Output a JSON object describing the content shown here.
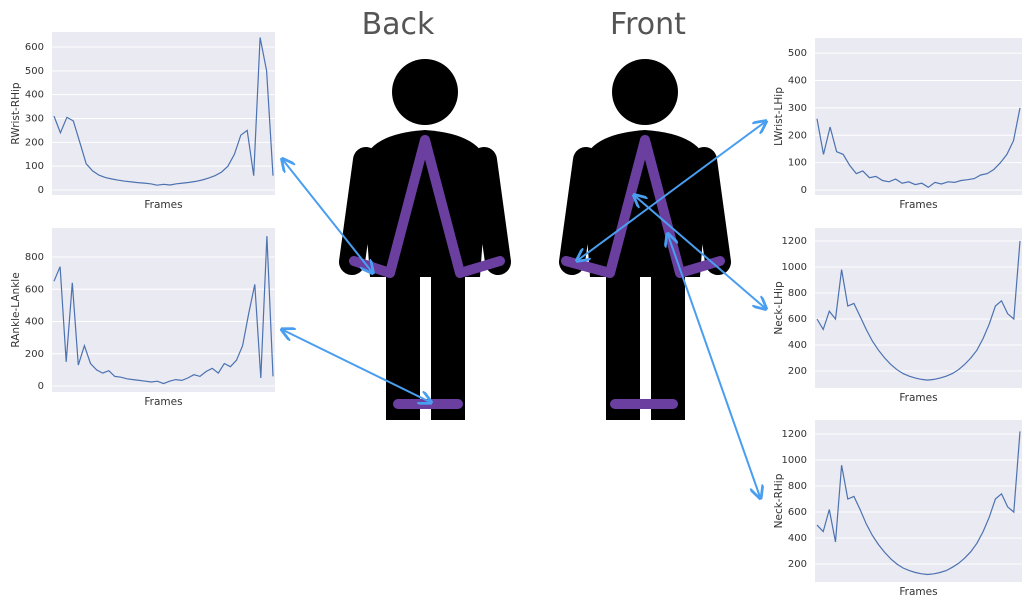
{
  "labels": {
    "back": "Back",
    "front": "Front"
  },
  "chart_data": [
    {
      "type": "line",
      "xlabel": "Frames",
      "ylabel": "RWrist-RHip",
      "color": "#4c72b0",
      "grid": true,
      "ylim": [
        -21,
        663
      ],
      "yticks": [
        0,
        100,
        200,
        300,
        400,
        500,
        600
      ],
      "values": [
        310,
        240,
        305,
        290,
        200,
        110,
        80,
        62,
        52,
        46,
        41,
        37,
        34,
        31,
        29,
        26,
        20,
        24,
        21,
        26,
        29,
        32,
        36,
        42,
        50,
        60,
        75,
        100,
        150,
        230,
        250,
        60,
        640,
        500,
        60
      ]
    },
    {
      "type": "line",
      "xlabel": "Frames",
      "ylabel": "RAnkle-LAnkle",
      "color": "#4c72b0",
      "grid": true,
      "ylim": [
        -37,
        980
      ],
      "yticks": [
        0,
        200,
        400,
        600,
        800
      ],
      "values": [
        650,
        740,
        150,
        640,
        130,
        250,
        140,
        100,
        80,
        95,
        60,
        55,
        45,
        40,
        35,
        30,
        25,
        30,
        15,
        30,
        40,
        35,
        50,
        70,
        60,
        90,
        110,
        80,
        140,
        120,
        160,
        250,
        450,
        630,
        50,
        930,
        60
      ]
    },
    {
      "type": "line",
      "xlabel": "Frames",
      "ylabel": "LWrist-LHip",
      "color": "#4c72b0",
      "grid": true,
      "ylim": [
        -18,
        555
      ],
      "yticks": [
        0,
        100,
        200,
        300,
        400,
        500
      ],
      "values": [
        260,
        130,
        230,
        140,
        130,
        90,
        60,
        70,
        45,
        50,
        35,
        30,
        40,
        25,
        30,
        20,
        25,
        10,
        28,
        22,
        30,
        28,
        35,
        38,
        42,
        55,
        60,
        75,
        100,
        130,
        180,
        300
      ]
    },
    {
      "type": "line",
      "xlabel": "Frames",
      "ylabel": "Neck-LHip",
      "color": "#4c72b0",
      "grid": true,
      "ylim": [
        69,
        1300
      ],
      "yticks": [
        200,
        400,
        600,
        800,
        1000,
        1200
      ],
      "values": [
        600,
        520,
        660,
        600,
        980,
        700,
        720,
        620,
        520,
        430,
        360,
        300,
        250,
        210,
        180,
        160,
        145,
        135,
        130,
        135,
        145,
        160,
        180,
        210,
        250,
        300,
        360,
        450,
        560,
        700,
        740,
        640,
        600,
        1200
      ]
    },
    {
      "type": "line",
      "xlabel": "Frames",
      "ylabel": "Neck-RHip",
      "color": "#4c72b0",
      "grid": true,
      "ylim": [
        62,
        1308
      ],
      "yticks": [
        200,
        400,
        600,
        800,
        1000,
        1200
      ],
      "values": [
        500,
        450,
        620,
        370,
        960,
        700,
        720,
        620,
        510,
        420,
        350,
        290,
        240,
        200,
        170,
        150,
        135,
        125,
        120,
        125,
        135,
        150,
        175,
        205,
        245,
        295,
        360,
        450,
        560,
        700,
        740,
        640,
        600,
        1220
      ]
    }
  ]
}
